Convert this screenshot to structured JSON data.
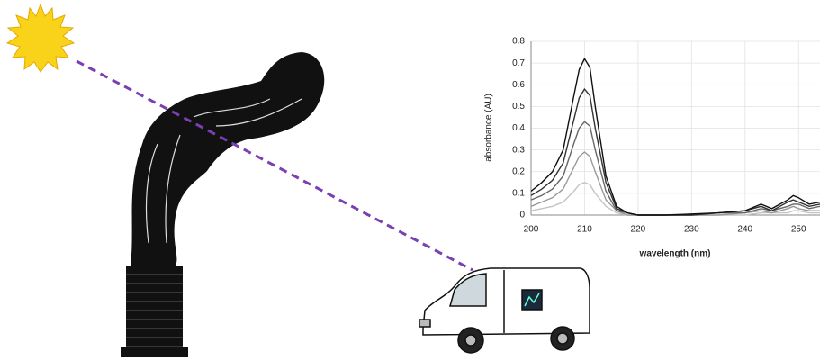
{
  "chart_data": {
    "type": "line",
    "x": [
      200,
      202,
      204,
      206,
      208,
      209,
      210,
      211,
      212,
      214,
      216,
      218,
      220,
      225,
      230,
      235,
      240,
      243,
      245,
      248,
      249,
      250,
      252,
      254
    ],
    "series": [
      {
        "color": "#111111",
        "values": [
          0.11,
          0.15,
          0.2,
          0.3,
          0.55,
          0.67,
          0.72,
          0.68,
          0.5,
          0.18,
          0.04,
          0.01,
          0,
          0,
          0.005,
          0.01,
          0.02,
          0.05,
          0.03,
          0.07,
          0.09,
          0.08,
          0.05,
          0.06
        ]
      },
      {
        "color": "#333333",
        "values": [
          0.09,
          0.12,
          0.16,
          0.24,
          0.44,
          0.54,
          0.58,
          0.55,
          0.4,
          0.15,
          0.03,
          0.01,
          0,
          0,
          0,
          0.01,
          0.02,
          0.04,
          0.02,
          0.06,
          0.07,
          0.06,
          0.04,
          0.05
        ]
      },
      {
        "color": "#666666",
        "values": [
          0.07,
          0.09,
          0.12,
          0.18,
          0.33,
          0.4,
          0.43,
          0.41,
          0.3,
          0.11,
          0.02,
          0.01,
          0,
          0,
          0,
          0.01,
          0.01,
          0.03,
          0.02,
          0.04,
          0.05,
          0.05,
          0.03,
          0.04
        ]
      },
      {
        "color": "#999999",
        "values": [
          0.04,
          0.06,
          0.08,
          0.12,
          0.22,
          0.27,
          0.29,
          0.27,
          0.2,
          0.07,
          0.02,
          0,
          0,
          0,
          0,
          0,
          0.01,
          0.02,
          0.01,
          0.03,
          0.04,
          0.03,
          0.02,
          0.02
        ]
      },
      {
        "color": "#c4c4c4",
        "values": [
          0.02,
          0.03,
          0.04,
          0.06,
          0.11,
          0.14,
          0.15,
          0.14,
          0.1,
          0.04,
          0.01,
          0,
          0,
          0,
          0,
          0,
          0,
          0.01,
          0.01,
          0.01,
          0.02,
          0.02,
          0.01,
          0.01
        ]
      }
    ],
    "x_label": "wavelength (nm)",
    "y_label": "absorbance (AU)",
    "xlim": [
      200,
      254
    ],
    "xticks": [
      200,
      210,
      220,
      230,
      240,
      250
    ],
    "ylim": [
      0,
      0.8
    ],
    "yticks": [
      0,
      0.1,
      0.2,
      0.3,
      0.4,
      0.5,
      0.6,
      0.7,
      0.8
    ],
    "grid": true
  }
}
